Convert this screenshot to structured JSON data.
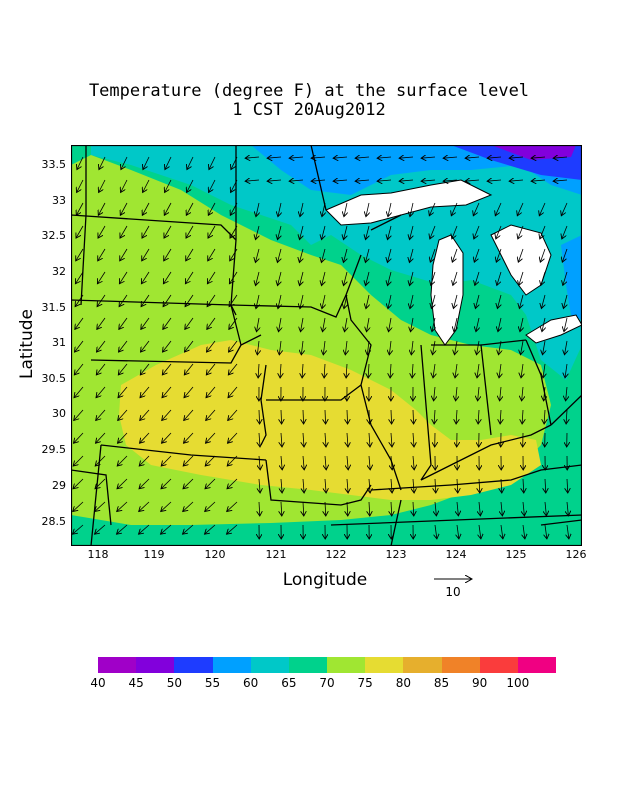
{
  "title": {
    "line1": "Temperature (degree F) at the surface level",
    "line2": "1 CST 20Aug2012"
  },
  "axes": {
    "xlabel": "Longitude",
    "ylabel": "Latitude",
    "xticks": [
      "118",
      "119",
      "120",
      "121",
      "122",
      "123",
      "124",
      "125",
      "126"
    ],
    "yticks": [
      "28.5",
      "29",
      "29.5",
      "30",
      "30.5",
      "31",
      "31.5",
      "32",
      "32.5",
      "33",
      "33.5"
    ],
    "xlim": [
      117.6,
      126.05
    ],
    "ylim": [
      28.15,
      33.75
    ]
  },
  "reference_vector": {
    "label": "10",
    "magnitude": 10
  },
  "colorbar": {
    "labels": [
      "40",
      "45",
      "50",
      "55",
      "60",
      "65",
      "70",
      "75",
      "80",
      "85",
      "90",
      "100"
    ],
    "colors": [
      "#a000c8",
      "#8200dc",
      "#1e3cff",
      "#00a0ff",
      "#00c8c8",
      "#00d28c",
      "#a0e632",
      "#e6dc32",
      "#e6af2d",
      "#f08228",
      "#fa3c3c",
      "#f00082"
    ]
  },
  "fields": {
    "background_color": "#00d28c",
    "lightgreen_color": "#a0e632",
    "yellow_color": "#e6dc32",
    "cyan_color": "#00c8c8",
    "lightblue_color": "#00a0ff",
    "blue_color": "#1e3cff",
    "purple_color": "#8200dc"
  }
}
